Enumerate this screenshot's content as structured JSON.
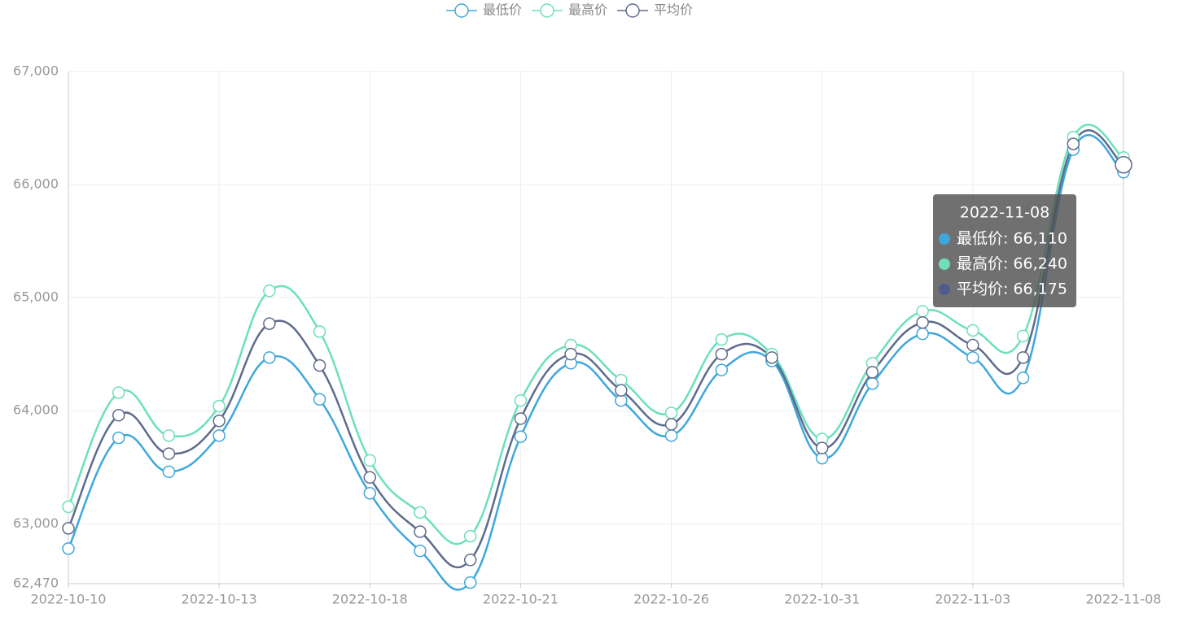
{
  "chart_data": {
    "type": "line",
    "categories": [
      "2022-10-10",
      null,
      null,
      "2022-10-13",
      null,
      null,
      "2022-10-18",
      null,
      null,
      "2022-10-21",
      null,
      null,
      "2022-10-26",
      null,
      null,
      "2022-10-31",
      null,
      null,
      "2022-11-03",
      null,
      null,
      "2022-11-08"
    ],
    "series": [
      {
        "name": "最低价",
        "color": "#3fa7dc",
        "values": [
          62780,
          63760,
          63460,
          63780,
          64470,
          64100,
          63270,
          62760,
          62480,
          63770,
          64420,
          64090,
          63780,
          64360,
          64440,
          63580,
          64240,
          64680,
          64470,
          64290,
          66310,
          66110
        ]
      },
      {
        "name": "最高价",
        "color": "#6ce0bb",
        "values": [
          63150,
          64160,
          63780,
          64040,
          65060,
          64700,
          63560,
          63100,
          62890,
          64090,
          64580,
          64270,
          63980,
          64630,
          64500,
          63750,
          64420,
          64880,
          64710,
          64660,
          66420,
          66240
        ]
      },
      {
        "name": "平均价",
        "color": "#5f6b8c",
        "values": [
          62960,
          63960,
          63620,
          63910,
          64770,
          64400,
          63410,
          62930,
          62680,
          63930,
          64500,
          64180,
          63880,
          64500,
          64470,
          63670,
          64340,
          64780,
          64580,
          64470,
          66360,
          66175
        ]
      }
    ],
    "ylim": [
      62470,
      67000
    ],
    "yticks": [
      {
        "value": 62470,
        "label": "62,470"
      },
      {
        "value": 63000,
        "label": "63,000"
      },
      {
        "value": 64000,
        "label": "64,000"
      },
      {
        "value": 65000,
        "label": "65,000"
      },
      {
        "value": 66000,
        "label": "66,000"
      },
      {
        "value": 67000,
        "label": "67,000"
      }
    ],
    "grid": true,
    "legend": "top",
    "tooltip": {
      "index": 21,
      "lines": [
        "最低价: 66,110",
        "最高价: 66,240",
        "平均价: 66,175"
      ],
      "dot_colors": [
        "#3fa7dc",
        "#6fe0b4",
        "#4f5a8e"
      ]
    }
  }
}
